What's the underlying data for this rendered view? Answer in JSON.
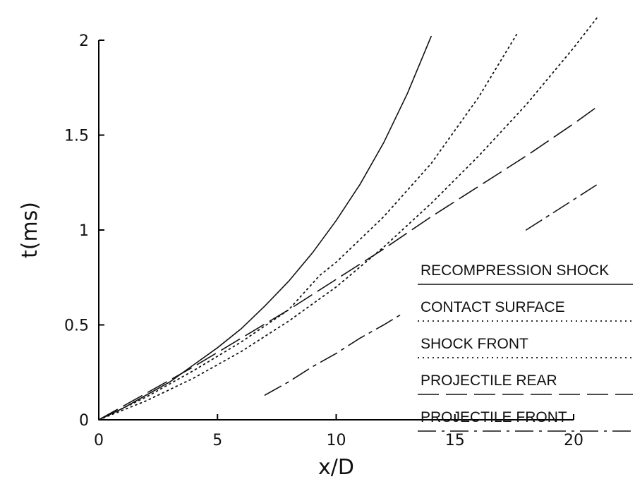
{
  "chart_data": {
    "type": "line",
    "xlabel": "x/D",
    "ylabel": "t(ms)",
    "xlim": [
      0,
      20
    ],
    "ylim": [
      0,
      2
    ],
    "x_ticks": [
      0,
      5,
      10,
      15,
      20
    ],
    "x_tick_labels": [
      "0",
      "5",
      "10",
      "15",
      "20"
    ],
    "y_ticks": [
      0,
      0.5,
      1,
      1.5,
      2
    ],
    "y_tick_labels": [
      "0",
      "0.5",
      "1",
      "1.5",
      "2"
    ],
    "grid": false,
    "legend_position": "lower-right",
    "series": [
      {
        "name": "RECOMPRESSION SHOCK",
        "style": "solid",
        "x": [
          0,
          1,
          2,
          3,
          4,
          5,
          6,
          7,
          8,
          9,
          10,
          11,
          12,
          13,
          14
        ],
        "y": [
          0,
          0.06,
          0.13,
          0.2,
          0.29,
          0.38,
          0.48,
          0.6,
          0.73,
          0.88,
          1.05,
          1.24,
          1.46,
          1.72,
          2.02
        ]
      },
      {
        "name": "CONTACT SURFACE",
        "style": "dotted",
        "x": [
          0,
          2,
          4,
          6,
          8,
          9.3,
          10,
          12,
          14,
          16,
          17.6
        ],
        "y": [
          0,
          0.12,
          0.26,
          0.41,
          0.58,
          0.76,
          0.83,
          1.07,
          1.35,
          1.7,
          2.03
        ]
      },
      {
        "name": "SHOCK FRONT",
        "style": "dotted",
        "x": [
          0,
          2,
          4,
          6,
          8,
          10,
          12,
          14,
          16,
          18,
          20,
          21
        ],
        "y": [
          0,
          0.1,
          0.22,
          0.36,
          0.52,
          0.7,
          0.91,
          1.14,
          1.39,
          1.66,
          1.96,
          2.12
        ]
      },
      {
        "name": "PROJECTILE REAR",
        "style": "dashed",
        "x": [
          0,
          2,
          4,
          6,
          8,
          10,
          12,
          14,
          16,
          18,
          20,
          21
        ],
        "y": [
          0,
          0.14,
          0.28,
          0.43,
          0.58,
          0.74,
          0.9,
          1.07,
          1.23,
          1.39,
          1.56,
          1.65
        ]
      },
      {
        "name": "PROJECTILE FRONT",
        "style": "dash-dot",
        "x": [
          7,
          8,
          9,
          10,
          11,
          12,
          12.8
        ],
        "x2": [
          18,
          19,
          20,
          21
        ],
        "y": [
          0.13,
          0.2,
          0.28,
          0.35,
          0.43,
          0.5,
          0.56
        ],
        "y2": [
          1.0,
          1.08,
          1.16,
          1.24
        ]
      }
    ]
  }
}
